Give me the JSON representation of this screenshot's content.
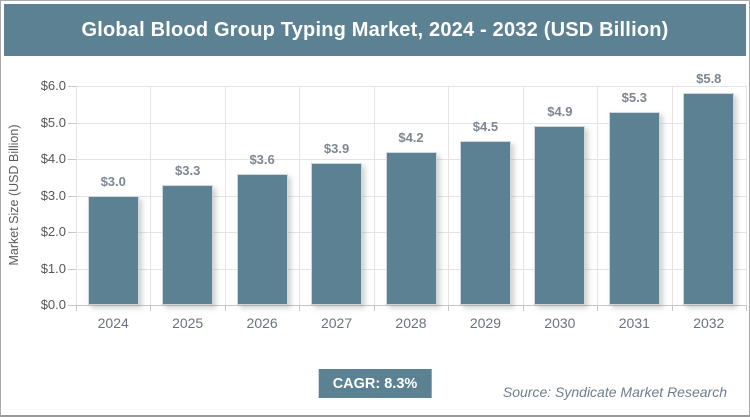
{
  "header": {
    "title": "Global Blood Group Typing Market, 2024 - 2032 (USD Billion)"
  },
  "colors": {
    "accent": "#5c8192",
    "grid": "#e4e4e4",
    "axis_line": "#c6c6c6",
    "y_tick_label": "#565656",
    "x_tick_label": "#6a737b",
    "data_label": "#7b8792",
    "source_text": "#6e7e8c",
    "title_text": "#ffffff",
    "frame_border": "#a9a9a9"
  },
  "chart_data": {
    "type": "bar",
    "title": "Global Blood Group Typing Market, 2024 - 2032 (USD Billion)",
    "categories": [
      "2024",
      "2025",
      "2026",
      "2027",
      "2028",
      "2029",
      "2030",
      "2031",
      "2032"
    ],
    "values": [
      3.0,
      3.3,
      3.6,
      3.9,
      4.2,
      4.5,
      4.9,
      5.3,
      5.8
    ],
    "data_labels": [
      "$3.0",
      "$3.3",
      "$3.6",
      "$3.9",
      "$4.2",
      "$4.5",
      "$4.9",
      "$5.3",
      "$5.8"
    ],
    "xlabel": "",
    "ylabel": "Market Size (USD Billion)",
    "ylim": [
      0,
      6
    ],
    "y_ticks": [
      "$0.0",
      "$1.0",
      "$2.0",
      "$3.0",
      "$4.0",
      "$5.0",
      "$6.0"
    ],
    "grid": true,
    "legend_position": "none",
    "bar_color": "#5c8192"
  },
  "footer": {
    "cagr_label": "CAGR: 8.3%",
    "source": "Source: Syndicate Market Research"
  }
}
